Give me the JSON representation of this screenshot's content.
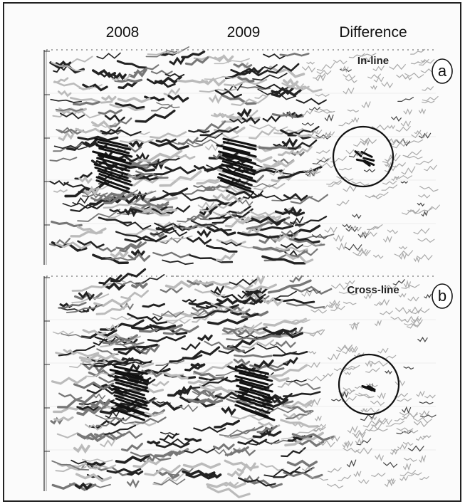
{
  "column_headers": [
    "2008",
    "2009",
    "Difference"
  ],
  "panels": [
    {
      "label": "In-line",
      "tag": "a"
    },
    {
      "label": "Cross-line",
      "tag": "b"
    }
  ]
}
